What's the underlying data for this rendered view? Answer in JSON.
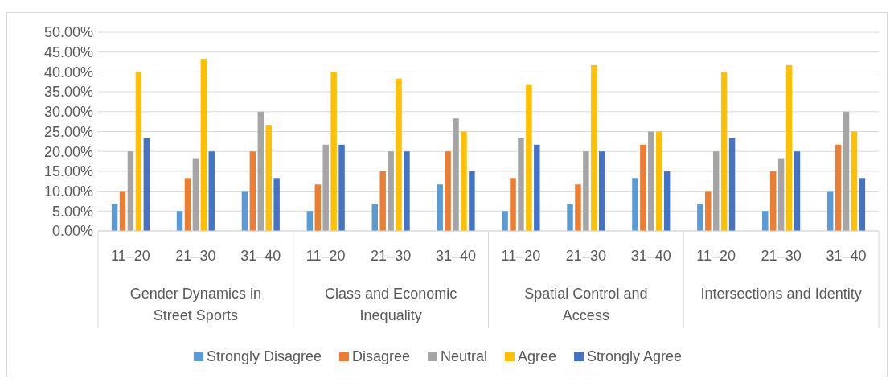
{
  "chart_data": {
    "type": "bar",
    "categories": [
      "11–20",
      "21–30",
      "31–40",
      "11–20",
      "21–30",
      "31–40",
      "11–20",
      "21–30",
      "31–40",
      "11–20",
      "21–30",
      "31–40"
    ],
    "annotations": [
      "Gender Dynamics in Street Sports",
      "Class and Economic Inequality",
      "Spatial Control and Access",
      "Intersections and Identity"
    ],
    "series": [
      {
        "name": "Strongly Disagree",
        "color": "#5b9bd5",
        "values": [
          6.7,
          5,
          10,
          5,
          6.7,
          11.7,
          5,
          6.7,
          13.3,
          6.7,
          5,
          10
        ]
      },
      {
        "name": "Disagree",
        "color": "#ed7d31",
        "values": [
          10,
          13.3,
          20,
          11.7,
          15,
          20,
          13.3,
          11.7,
          21.7,
          10,
          15,
          21.7
        ]
      },
      {
        "name": "Neutral",
        "color": "#a5a5a5",
        "values": [
          20,
          18.3,
          30,
          21.7,
          20,
          28.3,
          23.3,
          20,
          25,
          20,
          18.3,
          30
        ]
      },
      {
        "name": "Agree",
        "color": "#ffc000",
        "values": [
          40,
          43.3,
          26.7,
          40,
          38.3,
          25,
          36.7,
          41.7,
          25,
          40,
          41.7,
          25
        ]
      },
      {
        "name": "Strongly Agree",
        "color": "#4472c4",
        "values": [
          23.3,
          20,
          13.3,
          21.7,
          20,
          15,
          21.7,
          20,
          15,
          23.3,
          20,
          13.3
        ]
      }
    ],
    "ylim": [
      0,
      50
    ],
    "yticks": [
      {
        "value": 0,
        "label": "0.00%"
      },
      {
        "value": 5,
        "label": "5.00%"
      },
      {
        "value": 10,
        "label": "10.00%"
      },
      {
        "value": 15,
        "label": "15.00%"
      },
      {
        "value": 20,
        "label": "20.00%"
      },
      {
        "value": 25,
        "label": "25.00%"
      },
      {
        "value": 30,
        "label": "30.00%"
      },
      {
        "value": 35,
        "label": "35.00%"
      },
      {
        "value": 40,
        "label": "40.00%"
      },
      {
        "value": 45,
        "label": "45.00%"
      },
      {
        "value": 50,
        "label": "50.00%"
      }
    ],
    "grid": "y",
    "legend": "bottom"
  }
}
